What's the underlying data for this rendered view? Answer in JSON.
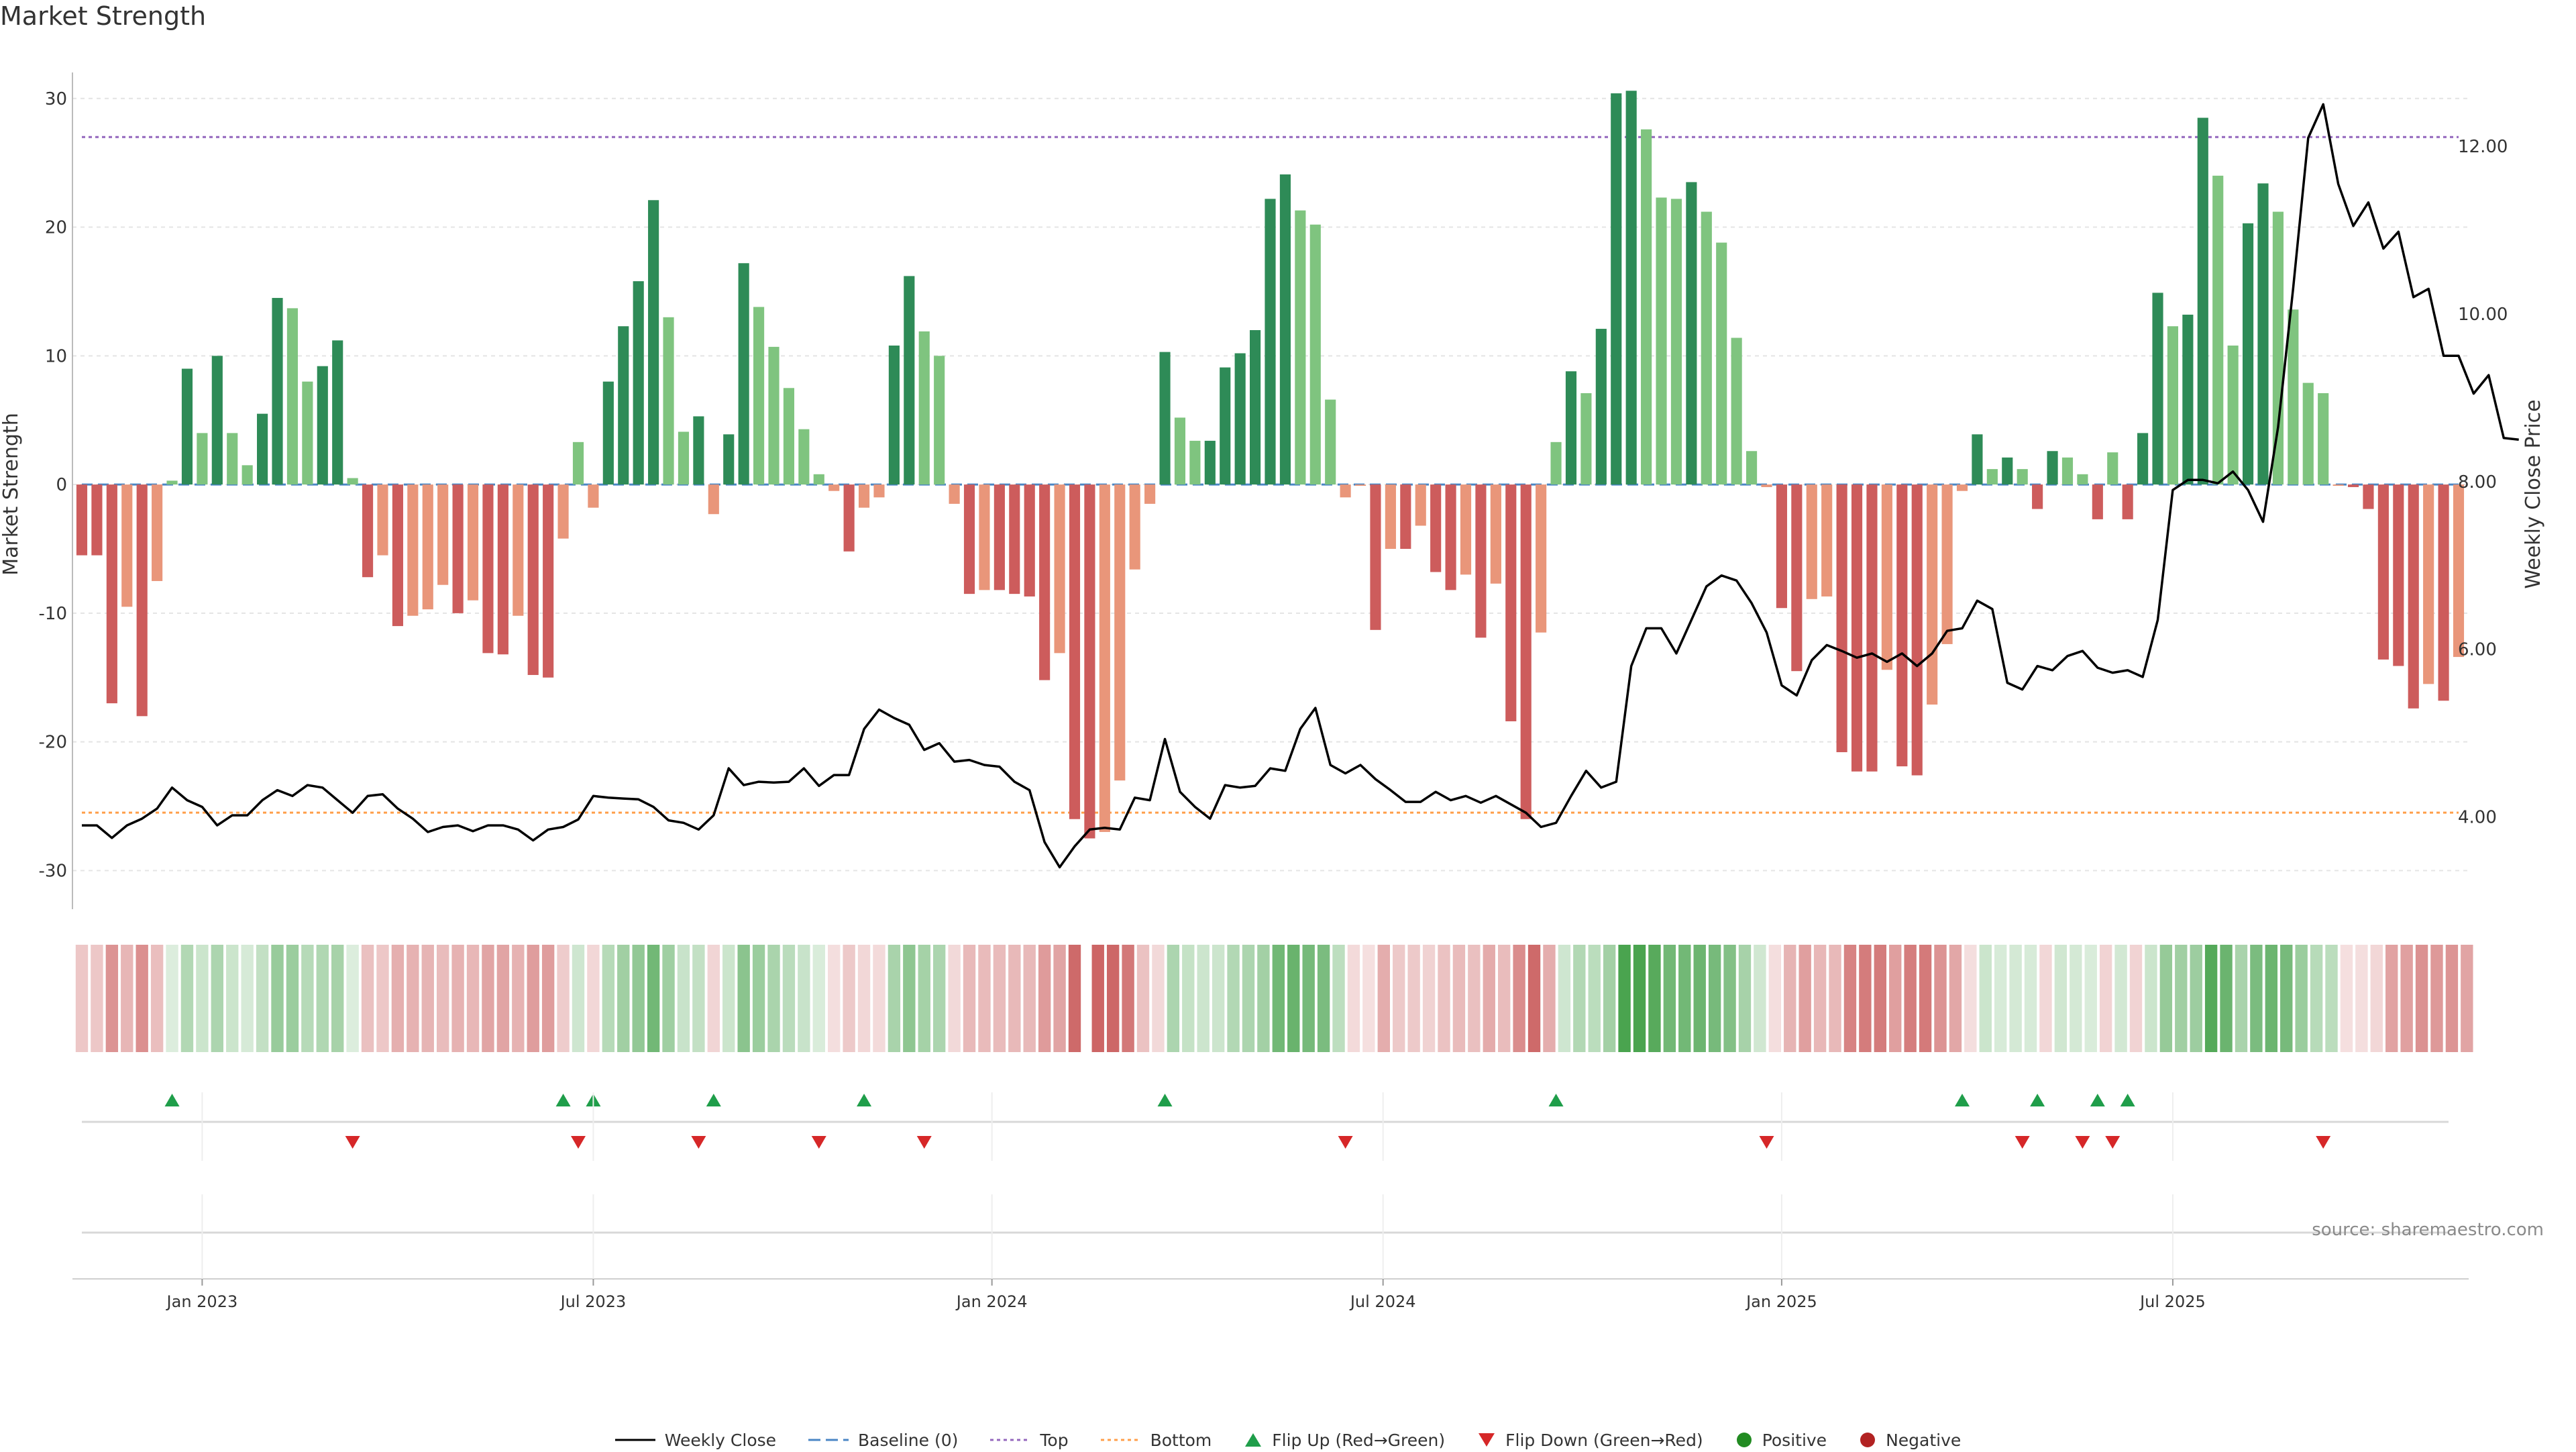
{
  "title": "Market Strength",
  "source": "source: sharemaestro.com",
  "chart_data": {
    "type": "bar",
    "title": "Market Strength",
    "left_axis": {
      "label": "Market Strength",
      "ticks": [
        -30,
        -20,
        -10,
        0,
        10,
        20,
        30
      ],
      "range": [
        -33,
        31.5
      ]
    },
    "right_axis": {
      "label": "Weekly Close Price",
      "ticks": [
        "4.00",
        "6.00",
        "8.00",
        "10.00",
        "12.00"
      ],
      "range": [
        2.9,
        12.8
      ]
    },
    "x_ticks": [
      {
        "label": "Jan 2023",
        "week": 8
      },
      {
        "label": "Jul 2023",
        "week": 34
      },
      {
        "label": "Jan 2024",
        "week": 60.5
      },
      {
        "label": "Jul 2024",
        "week": 86.5
      },
      {
        "label": "Jan 2025",
        "week": 113
      },
      {
        "label": "Jul 2025",
        "week": 139
      }
    ],
    "reference_lines": {
      "top": 27,
      "bottom": -25.5,
      "baseline": 0
    },
    "strength": [
      -5.5,
      -5.5,
      -17,
      -9.5,
      -18,
      -7.5,
      0.3,
      9,
      4,
      10,
      4,
      1.5,
      5.5,
      14.5,
      13.7,
      8,
      9.2,
      11.2,
      0.5,
      -7.2,
      -5.5,
      -11,
      -10.2,
      -9.7,
      -7.8,
      -10,
      -9,
      -13.1,
      -13.2,
      -10.2,
      -14.8,
      -15,
      -4.2,
      3.3,
      -1.8,
      8,
      12.3,
      15.8,
      22.1,
      13,
      4.1,
      5.3,
      -2.3,
      3.9,
      17.2,
      13.8,
      10.7,
      7.5,
      4.3,
      0.8,
      -0.5,
      -5.2,
      -1.8,
      -1,
      10.8,
      16.2,
      11.9,
      10,
      -1.5,
      -8.5,
      -8.2,
      -8.2,
      -8.5,
      -8.7,
      -15.2,
      -13.1,
      -26,
      -27.5,
      -27,
      -23,
      -6.6,
      -1.5,
      10.3,
      5.2,
      3.4,
      3.4,
      9.1,
      10.2,
      12,
      22.2,
      24.1,
      21.3,
      20.2,
      6.6,
      -1,
      -0.1,
      -11.3,
      -5,
      -5,
      -3.2,
      -6.8,
      -8.2,
      -7,
      -11.9,
      -7.7,
      -18.4,
      -26,
      -11.5,
      3.3,
      8.8,
      7.1,
      12.1,
      30.4,
      30.6,
      27.6,
      22.3,
      22.2,
      23.5,
      21.2,
      18.8,
      11.4,
      2.6,
      -0.2,
      -9.6,
      -14.5,
      -8.9,
      -8.7,
      -20.8,
      -22.3,
      -22.3,
      -14.4,
      -21.9,
      -22.6,
      -17.1,
      -12.4,
      -0.5,
      3.9,
      1.2,
      2.1,
      1.2,
      -1.9,
      2.6,
      2.1,
      0.8,
      -2.7,
      2.5,
      -2.7,
      4,
      14.9,
      12.3,
      13.2,
      28.5,
      24,
      10.8,
      20.3,
      23.4,
      21.2,
      13.6,
      7.9,
      7.1,
      -0.1,
      -0.2,
      -1.9,
      -13.6,
      -14.1,
      -17.4,
      -15.5,
      -16.8,
      -13.4
    ],
    "weekly_close": [
      3.9,
      3.9,
      3.75,
      3.9,
      3.98,
      4.1,
      4.35,
      4.2,
      4.12,
      3.9,
      4.02,
      4.02,
      4.2,
      4.32,
      4.25,
      4.38,
      4.35,
      4.2,
      4.05,
      4.25,
      4.27,
      4.1,
      3.98,
      3.82,
      3.88,
      3.9,
      3.83,
      3.9,
      3.9,
      3.85,
      3.72,
      3.85,
      3.88,
      3.97,
      4.25,
      4.23,
      4.22,
      4.21,
      4.12,
      3.96,
      3.93,
      3.85,
      4.02,
      4.58,
      4.38,
      4.42,
      4.41,
      4.42,
      4.58,
      4.37,
      4.5,
      4.5,
      5.05,
      5.28,
      5.18,
      5.1,
      4.8,
      4.88,
      4.66,
      4.68,
      4.62,
      4.6,
      4.42,
      4.32,
      3.7,
      3.4,
      3.65,
      3.85,
      3.87,
      3.85,
      4.23,
      4.2,
      4.93,
      4.3,
      4.12,
      3.98,
      4.38,
      4.35,
      4.37,
      4.58,
      4.55,
      5.05,
      5.3,
      4.62,
      4.52,
      4.62,
      4.45,
      4.32,
      4.18,
      4.18,
      4.3,
      4.2,
      4.25,
      4.17,
      4.25,
      4.15,
      4.05,
      3.88,
      3.93,
      4.25,
      4.55,
      4.35,
      4.42,
      5.8,
      6.25,
      6.25,
      5.95,
      6.35,
      6.75,
      6.88,
      6.82,
      6.55,
      6.2,
      5.57,
      5.45,
      5.87,
      6.05,
      5.98,
      5.9,
      5.95,
      5.85,
      5.95,
      5.8,
      5.95,
      6.22,
      6.25,
      6.58,
      6.48,
      5.6,
      5.52,
      5.8,
      5.75,
      5.92,
      5.98,
      5.78,
      5.72,
      5.75,
      5.67,
      6.35,
      7.9,
      8.02,
      8.02,
      7.98,
      8.12,
      7.9,
      7.52,
      8.65,
      10.3,
      12.1,
      12.5,
      11.55,
      11.05,
      11.33,
      10.78,
      10.98,
      10.2,
      10.3,
      9.5,
      9.5,
      9.05,
      9.27,
      8.52,
      8.5
    ],
    "heat_gap_after_week": 66,
    "flip_up_weeks": [
      6,
      32,
      34,
      42,
      52,
      72,
      98,
      125,
      130,
      134,
      136
    ],
    "flip_down_weeks": [
      18,
      33,
      41,
      49,
      56,
      84,
      112,
      129,
      133,
      135,
      149
    ],
    "legend": [
      "Weekly Close",
      "Baseline (0)",
      "Top",
      "Bottom",
      "Flip Up (Red→Green)",
      "Flip Down (Green→Red)",
      "Positive",
      "Negative"
    ],
    "colors": {
      "positive_strong": "#2e8b57",
      "positive_weak": "#7fc47f",
      "negative_strong": "#cd5c5c",
      "negative_weak": "#e9967a",
      "price_line": "#000000",
      "baseline": "#4a86c5",
      "top_line": "#9467bd",
      "bottom_line": "#ff9f4a",
      "flip_up": "#1f9e4a",
      "flip_down": "#d62728",
      "positive_dot": "#228b22",
      "negative_dot": "#b22222"
    }
  }
}
